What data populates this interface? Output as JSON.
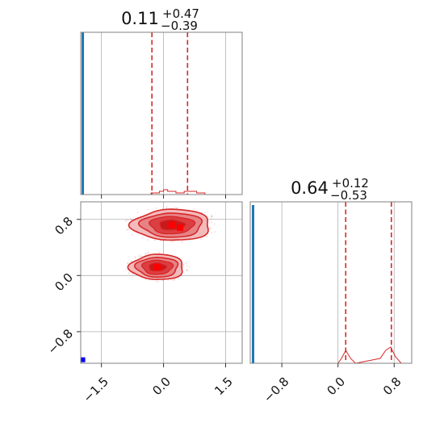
{
  "chart_data": [
    {
      "type": "histogram",
      "panel": "marginal-x",
      "title": {
        "value": "0.11",
        "plus": "+0.47",
        "minus": "−0.39"
      },
      "xlim": [
        -2.0,
        1.9
      ],
      "quantiles": [
        -0.28,
        0.11,
        0.58
      ],
      "samples_red": {
        "x": [
          -0.5,
          -0.3,
          -0.1,
          0.0,
          0.1,
          0.3,
          0.5,
          0.8,
          1.0
        ],
        "height": [
          0.0,
          0.01,
          0.02,
          0.03,
          0.02,
          0.01,
          0.02,
          0.01,
          0.0
        ]
      },
      "samples_blue": {
        "x": -1.95,
        "height": 1.0
      },
      "color_samples": "#d62728",
      "color_reference": "#1f77b4"
    },
    {
      "type": "contour",
      "panel": "joint",
      "xlim": [
        -2.0,
        1.9
      ],
      "ylim": [
        -1.25,
        1.05
      ],
      "xticks": [
        -1.5,
        0.0,
        1.5
      ],
      "xtick_labels": [
        "−1.5",
        "0.0",
        "1.5"
      ],
      "yticks": [
        -0.8,
        0.0,
        0.8
      ],
      "ytick_labels": [
        "−0.8",
        "0.0",
        "0.8"
      ],
      "modes": [
        {
          "cx": 0.2,
          "cy": 0.72,
          "rx": 0.95,
          "ry": 0.22
        },
        {
          "cx": -0.15,
          "cy": 0.12,
          "rx": 0.65,
          "ry": 0.18
        }
      ],
      "peak_points": [
        {
          "x": 0.2,
          "y": 0.72
        },
        {
          "x": 0.4,
          "y": 0.68
        },
        {
          "x": -0.15,
          "y": 0.12
        }
      ],
      "reference_point": {
        "x": -1.95,
        "y": -1.2
      },
      "color_contour": "#d62728",
      "color_reference": "#0000ff"
    },
    {
      "type": "histogram",
      "panel": "marginal-y",
      "title": {
        "value": "0.64",
        "plus": "+0.12",
        "minus": "−0.53"
      },
      "xlim": [
        -1.25,
        1.05
      ],
      "xticks": [
        -0.8,
        0.0,
        0.8
      ],
      "xtick_labels": [
        "−0.8",
        "0.0",
        "0.8"
      ],
      "quantiles": [
        0.11,
        0.64,
        0.76
      ],
      "samples_red": {
        "x": [
          0.0,
          0.05,
          0.11,
          0.18,
          0.25,
          0.6,
          0.68,
          0.75,
          0.82,
          0.9
        ],
        "height": [
          0.0,
          0.03,
          0.08,
          0.03,
          0.0,
          0.03,
          0.08,
          0.1,
          0.04,
          0.0
        ]
      },
      "samples_blue": {
        "x": -1.21,
        "height": 1.0
      },
      "color_samples": "#d62728",
      "color_reference": "#1f77b4"
    }
  ]
}
